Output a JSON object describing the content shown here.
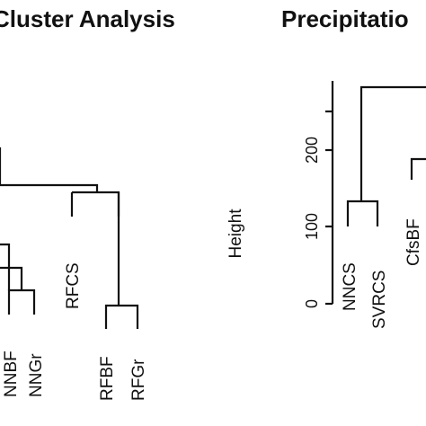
{
  "chart_data": [
    {
      "type": "dendrogram",
      "title": "Cluster Analysis",
      "leaves": [
        "NNBF",
        "NNGr",
        "RFCS",
        "RFBF",
        "RFGr"
      ]
    },
    {
      "type": "dendrogram",
      "title": "Precipitatio",
      "ylabel": "Height",
      "yticks": [
        "0",
        "100",
        "200"
      ],
      "ylim": [
        0,
        280
      ],
      "leaves": [
        "NNCS",
        "SVRCS",
        "CfsBF"
      ],
      "merges": [
        {
          "members": [
            "NNCS",
            "SVRCS"
          ],
          "height": 133
        },
        {
          "members": [
            "NNCS+SVRCS",
            "CfsBF+..."
          ],
          "height": 270
        }
      ]
    }
  ]
}
